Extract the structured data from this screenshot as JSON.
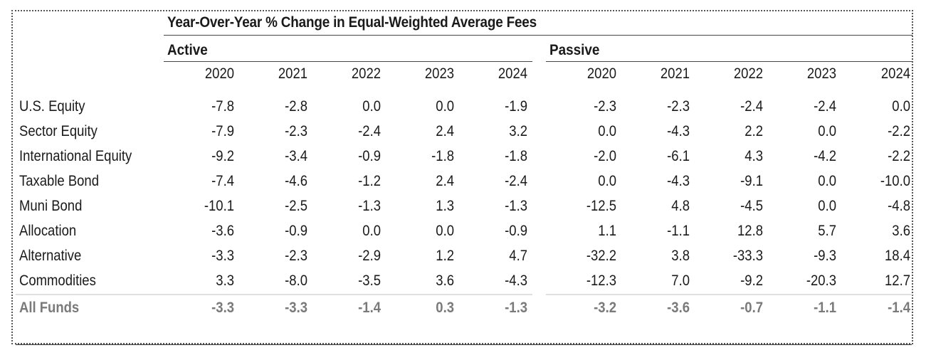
{
  "title": "Year-Over-Year % Change in Equal-Weighted Average Fees",
  "groups": {
    "active": "Active",
    "passive": "Passive"
  },
  "years": [
    "2020",
    "2021",
    "2022",
    "2023",
    "2024"
  ],
  "rows": [
    {
      "label": "U.S. Equity",
      "active": [
        "-7.8",
        "-2.8",
        "0.0",
        "0.0",
        "-1.9"
      ],
      "passive": [
        "-2.3",
        "-2.3",
        "-2.4",
        "-2.4",
        "0.0"
      ]
    },
    {
      "label": "Sector Equity",
      "active": [
        "-7.9",
        "-2.3",
        "-2.4",
        "2.4",
        "3.2"
      ],
      "passive": [
        "0.0",
        "-4.3",
        "2.2",
        "0.0",
        "-2.2"
      ]
    },
    {
      "label": "International Equity",
      "active": [
        "-9.2",
        "-3.4",
        "-0.9",
        "-1.8",
        "-1.8"
      ],
      "passive": [
        "-2.0",
        "-6.1",
        "4.3",
        "-4.2",
        "-2.2"
      ]
    },
    {
      "label": "Taxable Bond",
      "active": [
        "-7.4",
        "-4.6",
        "-1.2",
        "2.4",
        "-2.4"
      ],
      "passive": [
        "0.0",
        "-4.3",
        "-9.1",
        "0.0",
        "-10.0"
      ]
    },
    {
      "label": "Muni Bond",
      "active": [
        "-10.1",
        "-2.5",
        "-1.3",
        "1.3",
        "-1.3"
      ],
      "passive": [
        "-12.5",
        "4.8",
        "-4.5",
        "0.0",
        "-4.8"
      ]
    },
    {
      "label": "Allocation",
      "active": [
        "-3.6",
        "-0.9",
        "0.0",
        "0.0",
        "-0.9"
      ],
      "passive": [
        "1.1",
        "-1.1",
        "12.8",
        "5.7",
        "3.6"
      ]
    },
    {
      "label": "Alternative",
      "active": [
        "-3.3",
        "-2.3",
        "-2.9",
        "1.2",
        "4.7"
      ],
      "passive": [
        "-32.2",
        "3.8",
        "-33.3",
        "-9.3",
        "18.4"
      ]
    },
    {
      "label": "Commodities",
      "active": [
        "3.3",
        "-8.0",
        "-3.5",
        "3.6",
        "-4.3"
      ],
      "passive": [
        "-12.3",
        "7.0",
        "-9.2",
        "-20.3",
        "12.7"
      ]
    }
  ],
  "total": {
    "label": "All Funds",
    "active": [
      "-3.3",
      "-3.3",
      "-1.4",
      "0.3",
      "-1.3"
    ],
    "passive": [
      "-3.2",
      "-3.6",
      "-0.7",
      "-1.1",
      "-1.4"
    ]
  },
  "colors": {
    "total_text": "#7a7a7a",
    "rule": "#444444",
    "total_rule": "#e0e0e0"
  }
}
